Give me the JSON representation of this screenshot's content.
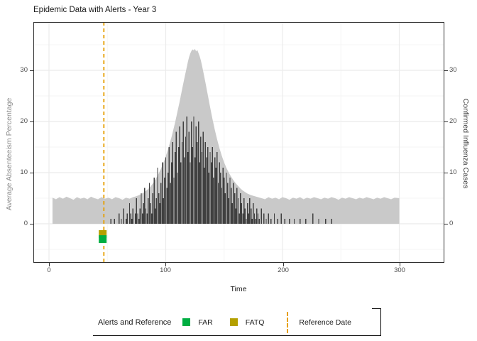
{
  "title": "Epidemic Data with Alerts - Year 3",
  "axes": {
    "left": {
      "title": "Average Absenteeism Percentage",
      "tick_labels": [
        "0",
        "10",
        "20",
        "30"
      ]
    },
    "right": {
      "title": "Confirmed Influenza Cases",
      "tick_labels": [
        "0",
        "10",
        "20",
        "30"
      ]
    },
    "bottom": {
      "title": "Time",
      "tick_labels": [
        "0",
        "100",
        "200",
        "300"
      ]
    }
  },
  "legend": {
    "title": "Alerts and Reference",
    "items": [
      {
        "label": "FAR",
        "type": "square",
        "color": "#00ae42"
      },
      {
        "label": "FATQ",
        "type": "square",
        "color": "#b4a000"
      },
      {
        "label": "Reference Date",
        "type": "dashed-line",
        "color": "#e69f00"
      }
    ]
  },
  "colors": {
    "area": "#c9c9c9",
    "bars": "#404040",
    "reference_line": "#e69f00",
    "far": "#00ae42",
    "fatq": "#b4a000",
    "panel_border": "#2f2f2f",
    "grid_major": "#ebebeb",
    "grid_minor": "#f5f5f5",
    "tick_label": "#4d4d4d",
    "left_axis_title": "#8c8c8c",
    "right_axis_title": "#3a3a3a"
  },
  "chart_data": {
    "type": "composite",
    "title": "Epidemic Data with Alerts - Year 3",
    "xlabel": "Time",
    "ylabel_left": "Average Absenteeism Percentage",
    "ylabel_right": "Confirmed Influenza Cases",
    "xlim": [
      -13,
      339
    ],
    "ylim": [
      -7.6,
      39.4
    ],
    "grid": {
      "major_x": [
        0,
        100,
        200,
        300
      ],
      "minor_x": [
        50,
        150,
        250
      ],
      "major_y": [
        0,
        10,
        20,
        30
      ],
      "minor_y": [
        -5,
        5,
        15,
        25,
        35
      ]
    },
    "reference_line": {
      "x": 47,
      "style": "dashed",
      "color": "#e69f00",
      "label": "Reference Date"
    },
    "alert_points": [
      {
        "name": "FATQ",
        "x": 46,
        "y": -2,
        "color": "#b4a000",
        "shape": "square"
      },
      {
        "name": "FAR",
        "x": 46,
        "y": -3,
        "color": "#00ae42",
        "shape": "square"
      }
    ],
    "series": [
      {
        "name": "Average Absenteeism Percentage",
        "type": "area",
        "axis": "left",
        "color": "#c9c9c9",
        "x": [
          3,
          6,
          9,
          12,
          15,
          18,
          21,
          24,
          27,
          30,
          33,
          36,
          39,
          42,
          45,
          48,
          51,
          54,
          57,
          60,
          63,
          66,
          69,
          72,
          75,
          78,
          81,
          84,
          87,
          90,
          93,
          96,
          99,
          102,
          105,
          108,
          110,
          112,
          114,
          116,
          118,
          119,
          120,
          121,
          122,
          123,
          124,
          125,
          126,
          127,
          128,
          129,
          130,
          131,
          132,
          134,
          136,
          138,
          140,
          142,
          144,
          146,
          148,
          150,
          152,
          154,
          156,
          158,
          160,
          162,
          164,
          166,
          168,
          170,
          173,
          176,
          179,
          182,
          185,
          188,
          191,
          194,
          197,
          200,
          203,
          206,
          209,
          212,
          215,
          218,
          221,
          224,
          227,
          230,
          233,
          236,
          239,
          242,
          245,
          248,
          251,
          254,
          257,
          260,
          263,
          266,
          269,
          272,
          275,
          278,
          281,
          284,
          287,
          290,
          293,
          296,
          300
        ],
        "y": [
          5.1,
          4.8,
          5.2,
          4.9,
          5.3,
          5.0,
          4.7,
          5.2,
          4.9,
          5.1,
          4.8,
          5.3,
          5.0,
          4.8,
          5.2,
          4.9,
          5.1,
          4.8,
          5.2,
          5.0,
          4.7,
          5.1,
          4.9,
          5.2,
          5.4,
          5.7,
          6.1,
          6.6,
          7.3,
          8.2,
          9.4,
          10.8,
          12.5,
          14.6,
          17.0,
          19.8,
          21.9,
          24.0,
          26.3,
          28.5,
          30.6,
          31.7,
          32.6,
          33.3,
          33.8,
          34.1,
          33.9,
          34.2,
          33.7,
          34.0,
          33.4,
          32.8,
          32.0,
          31.0,
          29.9,
          27.6,
          25.2,
          22.8,
          20.5,
          18.4,
          16.5,
          14.8,
          13.3,
          12.0,
          10.9,
          10.0,
          9.2,
          8.5,
          7.9,
          7.4,
          6.9,
          6.5,
          6.2,
          5.9,
          5.6,
          5.4,
          5.2,
          5.0,
          4.8,
          5.2,
          4.9,
          5.1,
          4.8,
          5.2,
          5.0,
          4.7,
          5.1,
          4.9,
          5.2,
          4.8,
          5.1,
          4.9,
          5.2,
          5.0,
          4.8,
          5.1,
          4.9,
          5.2,
          5.0,
          4.7,
          5.1,
          4.9,
          5.2,
          5.0,
          4.8,
          5.1,
          4.9,
          5.2,
          5.0,
          4.8,
          5.1,
          4.9,
          5.2,
          5.0,
          4.8,
          5.1,
          5.0
        ]
      },
      {
        "name": "Confirmed Influenza Cases",
        "type": "bar",
        "axis": "right",
        "color": "#404040",
        "x": [
          53,
          56,
          60,
          62,
          64,
          66,
          67,
          69,
          70,
          71,
          72,
          74,
          75,
          76,
          77,
          78,
          79,
          80,
          81,
          82,
          83,
          84,
          85,
          86,
          87,
          88,
          89,
          90,
          91,
          92,
          93,
          94,
          95,
          96,
          97,
          98,
          99,
          100,
          101,
          102,
          103,
          104,
          105,
          106,
          107,
          108,
          109,
          110,
          111,
          112,
          113,
          114,
          115,
          116,
          117,
          118,
          119,
          120,
          121,
          122,
          123,
          124,
          125,
          126,
          127,
          128,
          129,
          130,
          131,
          132,
          133,
          134,
          135,
          136,
          137,
          138,
          139,
          140,
          141,
          142,
          143,
          144,
          145,
          146,
          147,
          148,
          149,
          150,
          151,
          152,
          153,
          154,
          155,
          156,
          157,
          158,
          159,
          160,
          161,
          162,
          163,
          164,
          165,
          166,
          167,
          168,
          169,
          170,
          171,
          172,
          173,
          174,
          175,
          176,
          177,
          178,
          179,
          180,
          182,
          184,
          186,
          188,
          190,
          193,
          196,
          199,
          202,
          206,
          210,
          215,
          220,
          226,
          231,
          237,
          242
        ],
        "y": [
          1,
          1,
          2,
          1,
          3,
          1,
          2,
          4,
          2,
          1,
          3,
          2,
          5,
          2,
          1,
          3,
          6,
          2,
          4,
          7,
          3,
          2,
          5,
          8,
          4,
          2,
          6,
          9,
          3,
          5,
          11,
          6,
          4,
          8,
          12,
          5,
          9,
          13,
          7,
          10,
          15,
          8,
          12,
          16,
          9,
          14,
          18,
          10,
          15,
          19,
          12,
          16,
          20,
          13,
          17,
          21,
          14,
          18,
          12,
          20,
          15,
          21,
          13,
          19,
          16,
          20,
          12,
          17,
          14,
          18,
          11,
          16,
          13,
          15,
          10,
          14,
          12,
          15,
          9,
          13,
          11,
          14,
          8,
          12,
          10,
          7,
          11,
          9,
          6,
          10,
          8,
          5,
          9,
          7,
          4,
          8,
          6,
          3,
          7,
          5,
          2,
          6,
          4,
          2,
          5,
          3,
          1,
          4,
          2,
          5,
          3,
          1,
          4,
          2,
          1,
          3,
          2,
          1,
          3,
          2,
          1,
          2,
          1,
          2,
          1,
          2,
          1,
          1,
          1,
          1,
          1,
          2,
          1,
          1,
          1
        ]
      }
    ]
  }
}
